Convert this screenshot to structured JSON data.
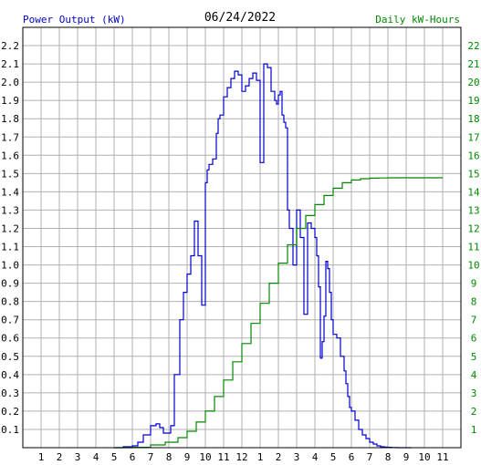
{
  "chart_data": {
    "type": "line",
    "title": "06/24/2022",
    "left_axis": {
      "label": "Power Output (kW)",
      "ylim": [
        0,
        2.3
      ],
      "ticks": [
        "0.1",
        "0.2",
        "0.3",
        "0.4",
        "0.5",
        "0.6",
        "0.7",
        "0.8",
        "0.9",
        "1.0",
        "1.1",
        "1.2",
        "1.3",
        "1.4",
        "1.5",
        "1.6",
        "1.7",
        "1.8",
        "1.9",
        "2.0",
        "2.1",
        "2.2"
      ],
      "color": "#0000cc"
    },
    "right_axis": {
      "label": "Daily kW-Hours",
      "ylim": [
        0,
        23
      ],
      "ticks": [
        "1",
        "2",
        "3",
        "4",
        "5",
        "6",
        "7",
        "8",
        "9",
        "10",
        "11",
        "12",
        "13",
        "14",
        "15",
        "16",
        "17",
        "18",
        "19",
        "20",
        "21",
        "22"
      ],
      "color": "#008800"
    },
    "x_axis": {
      "xlim": [
        0,
        24
      ],
      "tick_labels": [
        "1",
        "2",
        "3",
        "4",
        "5",
        "6",
        "7",
        "8",
        "9",
        "10",
        "11",
        "12",
        "1",
        "2",
        "3",
        "4",
        "5",
        "6",
        "7",
        "8",
        "9",
        "10",
        "11"
      ]
    },
    "grid": true,
    "series": [
      {
        "axis": "left",
        "color": "#0000cc",
        "x": [
          5.0,
          5.5,
          6.0,
          6.3,
          6.6,
          7.0,
          7.3,
          7.5,
          7.7,
          7.9,
          8.1,
          8.3,
          8.6,
          8.8,
          9.0,
          9.2,
          9.4,
          9.6,
          9.8,
          10.0,
          10.1,
          10.2,
          10.4,
          10.6,
          10.7,
          10.8,
          11.0,
          11.2,
          11.4,
          11.6,
          11.8,
          12.0,
          12.2,
          12.4,
          12.6,
          12.8,
          13.0,
          13.2,
          13.4,
          13.6,
          13.8,
          13.9,
          14.0,
          14.1,
          14.2,
          14.3,
          14.4,
          14.5,
          14.6,
          14.8,
          15.0,
          15.2,
          15.4,
          15.6,
          15.8,
          16.0,
          16.1,
          16.2,
          16.3,
          16.4,
          16.5,
          16.6,
          16.7,
          16.8,
          16.9,
          17.0,
          17.2,
          17.4,
          17.6,
          17.7,
          17.8,
          17.9,
          18.0,
          18.2,
          18.4,
          18.6,
          18.8,
          19.0,
          19.2,
          19.4,
          19.6,
          19.8,
          20.0,
          20.2,
          20.5,
          21.0,
          21.3
        ],
        "y": [
          0.0,
          0.005,
          0.01,
          0.03,
          0.07,
          0.12,
          0.13,
          0.11,
          0.08,
          0.08,
          0.12,
          0.4,
          0.7,
          0.85,
          0.95,
          1.05,
          1.24,
          1.05,
          0.78,
          1.45,
          1.52,
          1.55,
          1.58,
          1.72,
          1.8,
          1.82,
          1.92,
          1.97,
          2.02,
          2.06,
          2.04,
          1.95,
          1.98,
          2.02,
          2.05,
          2.01,
          1.56,
          2.1,
          2.08,
          1.95,
          1.9,
          1.88,
          1.93,
          1.95,
          1.82,
          1.78,
          1.75,
          1.3,
          1.2,
          1.0,
          1.3,
          1.15,
          0.73,
          1.23,
          1.2,
          1.15,
          1.05,
          0.88,
          0.49,
          0.58,
          0.72,
          1.02,
          0.98,
          0.85,
          0.7,
          0.62,
          0.6,
          0.5,
          0.42,
          0.35,
          0.28,
          0.22,
          0.2,
          0.15,
          0.1,
          0.07,
          0.05,
          0.03,
          0.02,
          0.01,
          0.005,
          0.003,
          0.002,
          0.001,
          0.0,
          0.0,
          0.0
        ]
      },
      {
        "axis": "right",
        "color": "#008800",
        "x": [
          5.0,
          6.0,
          7.0,
          7.8,
          8.5,
          9.0,
          9.5,
          10.0,
          10.5,
          11.0,
          11.5,
          12.0,
          12.5,
          13.0,
          13.5,
          14.0,
          14.5,
          15.0,
          15.5,
          16.0,
          16.5,
          17.0,
          17.5,
          18.0,
          18.5,
          19.0,
          19.5,
          20.0,
          21.0,
          23.0
        ],
        "y": [
          0.0,
          0.02,
          0.15,
          0.3,
          0.55,
          0.9,
          1.4,
          2.0,
          2.8,
          3.7,
          4.7,
          5.7,
          6.8,
          7.9,
          9.0,
          10.1,
          11.1,
          12.0,
          12.7,
          13.3,
          13.8,
          14.2,
          14.5,
          14.65,
          14.72,
          14.75,
          14.76,
          14.77,
          14.77,
          14.77
        ]
      }
    ]
  }
}
